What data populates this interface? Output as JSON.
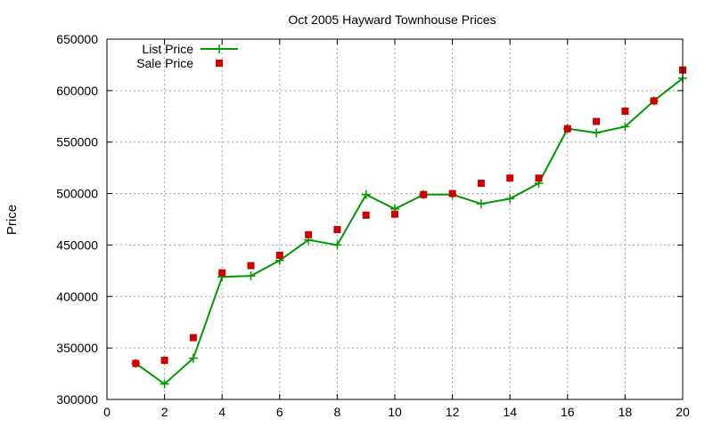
{
  "chart_data": {
    "type": "line",
    "title": "Oct 2005 Hayward Townhouse Prices",
    "xlabel": "",
    "ylabel": "Price",
    "xlim": [
      0,
      20
    ],
    "ylim": [
      300000,
      650000
    ],
    "x_ticks": [
      0,
      2,
      4,
      6,
      8,
      10,
      12,
      14,
      16,
      18,
      20
    ],
    "y_ticks": [
      300000,
      350000,
      400000,
      450000,
      500000,
      550000,
      600000,
      650000
    ],
    "grid": true,
    "legend_position": "top-left",
    "x": [
      1,
      2,
      3,
      4,
      5,
      6,
      7,
      8,
      9,
      10,
      11,
      12,
      13,
      14,
      15,
      16,
      17,
      18,
      19,
      20
    ],
    "series": [
      {
        "name": "List Price",
        "style": "line-with-plus-markers",
        "color": "#009900",
        "values": [
          335000,
          315000,
          340000,
          419000,
          420000,
          435000,
          455000,
          450000,
          499000,
          485000,
          499000,
          499000,
          490000,
          495000,
          510000,
          563000,
          559000,
          565000,
          590000,
          612000
        ]
      },
      {
        "name": "Sale Price",
        "style": "square-markers",
        "color": "#cc0000",
        "values": [
          335000,
          338000,
          360000,
          423000,
          430000,
          440000,
          460000,
          465000,
          479000,
          480000,
          499000,
          500000,
          510000,
          515000,
          515000,
          563000,
          570000,
          580000,
          590000,
          620000
        ]
      }
    ]
  }
}
